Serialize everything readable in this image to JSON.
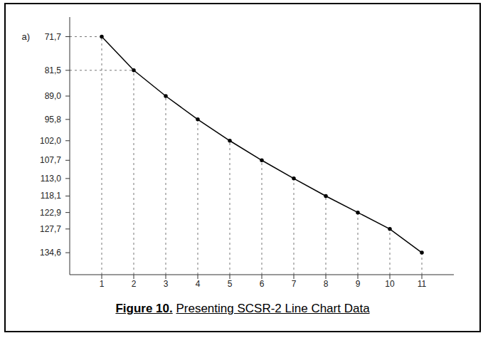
{
  "chart_data": {
    "type": "line",
    "panel": "a)",
    "x": [
      1,
      2,
      3,
      4,
      5,
      6,
      7,
      8,
      9,
      10,
      11
    ],
    "values": [
      71.7,
      81.5,
      89.0,
      95.8,
      102.0,
      107.7,
      113.0,
      118.1,
      122.9,
      127.7,
      134.6
    ],
    "color": "#000000",
    "marker": "circle",
    "grid": false,
    "xlim": [
      0,
      12
    ],
    "xticks": [
      1,
      2,
      3,
      4,
      5,
      6,
      7,
      8,
      9,
      10,
      11
    ],
    "ylim": [
      141,
      66
    ],
    "yticks": [
      {
        "value": 71.7,
        "label": "71,7"
      },
      {
        "value": 81.5,
        "label": "81,5"
      },
      {
        "value": 89.0,
        "label": "89,0"
      },
      {
        "value": 95.8,
        "label": "95,8"
      },
      {
        "value": 102.0,
        "label": "102,0"
      },
      {
        "value": 107.7,
        "label": "107,7"
      },
      {
        "value": 113.0,
        "label": "113,0"
      },
      {
        "value": 118.1,
        "label": "118,1"
      },
      {
        "value": 122.9,
        "label": "122,9"
      },
      {
        "value": 127.7,
        "label": "127,7"
      },
      {
        "value": 134.6,
        "label": "134,6"
      }
    ]
  },
  "caption": {
    "label": "Figure 10.",
    "text": "Presenting SCSR-2 Line Chart Data"
  }
}
